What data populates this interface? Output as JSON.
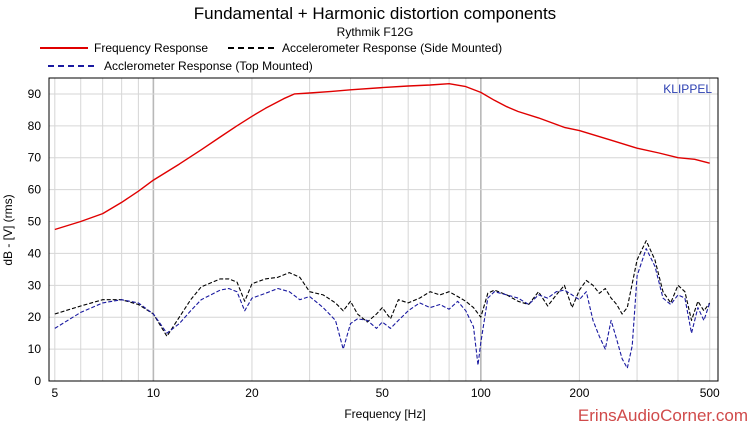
{
  "chart_data": {
    "type": "line",
    "title": "Fundamental + Harmonic distortion components",
    "subtitle": "Rythmik F12G",
    "xlabel": "Frequency [Hz]",
    "ylabel": "dB - [V]  (rms)",
    "xscale": "log",
    "xlim": [
      4.8,
      530
    ],
    "ylim": [
      0,
      95
    ],
    "x_ticks": [
      5,
      10,
      20,
      50,
      100,
      200,
      500
    ],
    "y_ticks": [
      0,
      10,
      20,
      30,
      40,
      50,
      60,
      70,
      80,
      90
    ],
    "grid": true,
    "legend_position": "top",
    "watermark": "KLIPPEL",
    "site_text": "ErinsAudioCorner.com",
    "series": [
      {
        "name": "Frequency Response",
        "color": "#e00000",
        "style": "solid",
        "points": [
          [
            5,
            47.5
          ],
          [
            6,
            50
          ],
          [
            7,
            52.5
          ],
          [
            8,
            56
          ],
          [
            9,
            59.5
          ],
          [
            10,
            63
          ],
          [
            12,
            68
          ],
          [
            14,
            72.5
          ],
          [
            16,
            76.5
          ],
          [
            18,
            80
          ],
          [
            20,
            83
          ],
          [
            22,
            85.5
          ],
          [
            25,
            88.5
          ],
          [
            27,
            90
          ],
          [
            30,
            90.3
          ],
          [
            35,
            90.8
          ],
          [
            40,
            91.3
          ],
          [
            50,
            92
          ],
          [
            60,
            92.5
          ],
          [
            70,
            92.8
          ],
          [
            80,
            93.2
          ],
          [
            90,
            92.3
          ],
          [
            100,
            90.5
          ],
          [
            110,
            88
          ],
          [
            120,
            86
          ],
          [
            130,
            84.5
          ],
          [
            150,
            82.5
          ],
          [
            180,
            79.5
          ],
          [
            200,
            78.5
          ],
          [
            250,
            75.5
          ],
          [
            300,
            73
          ],
          [
            350,
            71.5
          ],
          [
            400,
            70
          ],
          [
            450,
            69.5
          ],
          [
            500,
            68.3
          ]
        ]
      },
      {
        "name": "Accelerometer Response (Side Mounted)",
        "color": "#000000",
        "style": "dashed",
        "points": [
          [
            5,
            21
          ],
          [
            6,
            23.5
          ],
          [
            7,
            25.5
          ],
          [
            8,
            25.5
          ],
          [
            9,
            24
          ],
          [
            10,
            21
          ],
          [
            11,
            14
          ],
          [
            12,
            20
          ],
          [
            13,
            25.5
          ],
          [
            14,
            29.5
          ],
          [
            16,
            32
          ],
          [
            17,
            32
          ],
          [
            18,
            31
          ],
          [
            19,
            25
          ],
          [
            20,
            30.5
          ],
          [
            22,
            32
          ],
          [
            24,
            32.5
          ],
          [
            26,
            34
          ],
          [
            28,
            32.5
          ],
          [
            30,
            28
          ],
          [
            33,
            27
          ],
          [
            36,
            24.5
          ],
          [
            38,
            22
          ],
          [
            40,
            25
          ],
          [
            42,
            21
          ],
          [
            45,
            18.5
          ],
          [
            48,
            21
          ],
          [
            50,
            23
          ],
          [
            53,
            19.5
          ],
          [
            56,
            25.5
          ],
          [
            60,
            24.5
          ],
          [
            65,
            26
          ],
          [
            70,
            28
          ],
          [
            75,
            27
          ],
          [
            80,
            28
          ],
          [
            85,
            26.5
          ],
          [
            90,
            25
          ],
          [
            95,
            23
          ],
          [
            100,
            20
          ],
          [
            105,
            27.5
          ],
          [
            110,
            28.5
          ],
          [
            120,
            27
          ],
          [
            130,
            25
          ],
          [
            140,
            24
          ],
          [
            150,
            28
          ],
          [
            160,
            23.5
          ],
          [
            170,
            27
          ],
          [
            180,
            30
          ],
          [
            190,
            23
          ],
          [
            200,
            28.5
          ],
          [
            210,
            31.5
          ],
          [
            220,
            30
          ],
          [
            230,
            27.5
          ],
          [
            240,
            29
          ],
          [
            250,
            26
          ],
          [
            260,
            24
          ],
          [
            270,
            21
          ],
          [
            280,
            23
          ],
          [
            300,
            38
          ],
          [
            320,
            44
          ],
          [
            340,
            38
          ],
          [
            360,
            28
          ],
          [
            380,
            24.5
          ],
          [
            400,
            30
          ],
          [
            420,
            28
          ],
          [
            440,
            19
          ],
          [
            460,
            25
          ],
          [
            480,
            22
          ],
          [
            500,
            24.5
          ]
        ]
      },
      {
        "name": "Acclerometer Response (Top Mounted)",
        "color": "#1a1aa0",
        "style": "dashed",
        "points": [
          [
            5,
            16.5
          ],
          [
            6,
            21.5
          ],
          [
            7,
            24.5
          ],
          [
            8,
            25.5
          ],
          [
            9,
            24.5
          ],
          [
            10,
            21
          ],
          [
            11,
            15
          ],
          [
            12,
            18
          ],
          [
            13,
            22
          ],
          [
            14,
            25.5
          ],
          [
            16,
            28.5
          ],
          [
            17,
            29
          ],
          [
            18,
            28
          ],
          [
            19,
            22
          ],
          [
            20,
            26
          ],
          [
            22,
            27.5
          ],
          [
            24,
            29
          ],
          [
            26,
            28
          ],
          [
            28,
            25.5
          ],
          [
            30,
            26.5
          ],
          [
            33,
            23
          ],
          [
            36,
            19
          ],
          [
            38,
            10
          ],
          [
            40,
            18
          ],
          [
            42,
            19.5
          ],
          [
            45,
            19
          ],
          [
            48,
            16.5
          ],
          [
            50,
            18.5
          ],
          [
            53,
            16.5
          ],
          [
            56,
            19
          ],
          [
            60,
            22
          ],
          [
            65,
            24.5
          ],
          [
            70,
            23
          ],
          [
            75,
            24
          ],
          [
            80,
            22.5
          ],
          [
            85,
            25
          ],
          [
            90,
            22
          ],
          [
            95,
            17
          ],
          [
            98,
            5
          ],
          [
            100,
            12
          ],
          [
            105,
            26
          ],
          [
            110,
            28
          ],
          [
            120,
            27
          ],
          [
            130,
            26
          ],
          [
            140,
            24
          ],
          [
            150,
            27
          ],
          [
            160,
            26
          ],
          [
            170,
            28
          ],
          [
            180,
            28.5
          ],
          [
            190,
            27
          ],
          [
            200,
            25.5
          ],
          [
            210,
            28
          ],
          [
            220,
            19
          ],
          [
            230,
            14
          ],
          [
            240,
            10
          ],
          [
            250,
            19
          ],
          [
            260,
            13
          ],
          [
            270,
            7
          ],
          [
            280,
            4
          ],
          [
            290,
            11
          ],
          [
            300,
            33
          ],
          [
            320,
            41.5
          ],
          [
            340,
            36
          ],
          [
            360,
            26
          ],
          [
            380,
            24
          ],
          [
            400,
            27
          ],
          [
            420,
            26
          ],
          [
            440,
            15
          ],
          [
            460,
            23
          ],
          [
            480,
            19
          ],
          [
            500,
            24.5
          ]
        ]
      }
    ]
  }
}
